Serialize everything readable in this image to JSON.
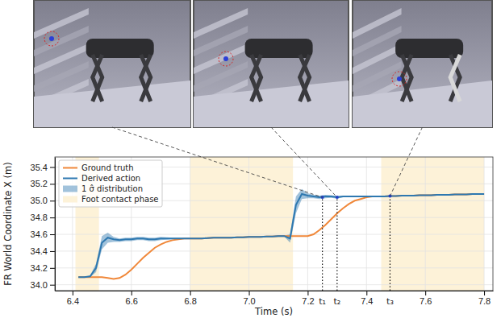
{
  "chart_data": {
    "type": "line",
    "x_label": "Time (s)",
    "y_label": "FR World Coordinate X (m)",
    "xlim": [
      6.34,
      7.83
    ],
    "ylim": [
      33.93,
      35.52
    ],
    "xticks": [
      6.4,
      6.6,
      6.8,
      {
        "value": 7.0,
        "label": "7.0"
      },
      7.2,
      7.4,
      7.6,
      7.8
    ],
    "yticks": [
      {
        "value": 34.0,
        "label": "34.0"
      },
      34.2,
      34.4,
      34.6,
      34.8,
      {
        "value": 35.0,
        "label": "35.0"
      },
      35.2,
      35.4
    ],
    "grid": true,
    "legend": "upper left",
    "annotations": [
      {
        "x": 7.25,
        "text": "t₁"
      },
      {
        "x": 7.3,
        "text": "t₂"
      },
      {
        "x": 7.48,
        "text": "t₃"
      }
    ],
    "contact_phases": {
      "name": "Foot contact phase",
      "color": "#fdf2d8",
      "ranges": [
        [
          6.41,
          6.49
        ],
        [
          6.8,
          7.15
        ],
        [
          7.45,
          7.8
        ]
      ]
    },
    "x": [
      6.42,
      6.44,
      6.46,
      6.48,
      6.5,
      6.52,
      6.54,
      6.56,
      6.58,
      6.6,
      6.62,
      6.64,
      6.66,
      6.68,
      6.7,
      6.72,
      6.74,
      6.76,
      6.78,
      6.8,
      6.82,
      6.84,
      6.86,
      6.88,
      6.9,
      6.92,
      6.94,
      6.96,
      6.98,
      7.0,
      7.02,
      7.04,
      7.06,
      7.08,
      7.1,
      7.12,
      7.14,
      7.16,
      7.18,
      7.2,
      7.22,
      7.24,
      7.26,
      7.28,
      7.3,
      7.32,
      7.34,
      7.36,
      7.38,
      7.4,
      7.42,
      7.44,
      7.46,
      7.48,
      7.5,
      7.52,
      7.54,
      7.56,
      7.58,
      7.6,
      7.62,
      7.64,
      7.66,
      7.68,
      7.7,
      7.72,
      7.74,
      7.76,
      7.78,
      7.8
    ],
    "series": [
      {
        "name": "Ground truth",
        "color": "#f0883a",
        "type": "line",
        "values": [
          34.09,
          34.09,
          34.09,
          34.09,
          34.09,
          34.08,
          34.07,
          34.08,
          34.12,
          34.18,
          34.25,
          34.32,
          34.38,
          34.44,
          34.48,
          34.51,
          34.53,
          34.54,
          34.55,
          34.55,
          34.55,
          34.55,
          34.555,
          34.56,
          34.56,
          34.56,
          34.56,
          34.565,
          34.565,
          34.57,
          34.57,
          34.57,
          34.575,
          34.575,
          34.58,
          34.58,
          34.58,
          34.58,
          34.58,
          34.58,
          34.6,
          34.65,
          34.71,
          34.78,
          34.85,
          34.91,
          34.96,
          35.0,
          35.02,
          35.04,
          35.05,
          35.05,
          35.05,
          35.055,
          35.055,
          35.06,
          35.06,
          35.06,
          35.065,
          35.065,
          35.065,
          35.07,
          35.07,
          35.07,
          35.075,
          35.075,
          35.075,
          35.08,
          35.08,
          35.08
        ]
      },
      {
        "name": "Derived action",
        "color": "#2e78b0",
        "type": "line",
        "values": [
          34.09,
          34.09,
          34.1,
          34.2,
          34.5,
          34.56,
          34.54,
          34.53,
          34.54,
          34.54,
          34.55,
          34.55,
          34.54,
          34.54,
          34.55,
          34.55,
          34.55,
          34.55,
          34.55,
          34.55,
          34.55,
          34.55,
          34.555,
          34.56,
          34.56,
          34.56,
          34.56,
          34.565,
          34.565,
          34.57,
          34.57,
          34.57,
          34.575,
          34.575,
          34.58,
          34.58,
          34.55,
          34.95,
          35.08,
          35.06,
          35.05,
          35.04,
          35.05,
          35.05,
          35.04,
          35.05,
          35.05,
          35.05,
          35.05,
          35.05,
          35.05,
          35.05,
          35.05,
          35.055,
          35.055,
          35.06,
          35.06,
          35.06,
          35.065,
          35.065,
          35.065,
          35.07,
          35.07,
          35.07,
          35.075,
          35.075,
          35.075,
          35.08,
          35.08,
          35.08
        ],
        "error": {
          "name": "1 σ̂ distribution",
          "values": [
            0.005,
            0.005,
            0.01,
            0.05,
            0.08,
            0.06,
            0.03,
            0.02,
            0.02,
            0.02,
            0.02,
            0.02,
            0.02,
            0.02,
            0.02,
            0.015,
            0.01,
            0.01,
            0.005,
            0.005,
            0.005,
            0.005,
            0.005,
            0.005,
            0.005,
            0.005,
            0.005,
            0.005,
            0.005,
            0.005,
            0.005,
            0.005,
            0.005,
            0.005,
            0.005,
            0.005,
            0.05,
            0.1,
            0.06,
            0.03,
            0.02,
            0.02,
            0.02,
            0.015,
            0.015,
            0.01,
            0.01,
            0.01,
            0.01,
            0.005,
            0.005,
            0.005,
            0.005,
            0.005,
            0.005,
            0.005,
            0.005,
            0.005,
            0.005,
            0.005,
            0.005,
            0.005,
            0.005,
            0.005,
            0.005,
            0.005,
            0.005,
            0.005,
            0.005,
            0.005
          ]
        }
      }
    ]
  }
}
